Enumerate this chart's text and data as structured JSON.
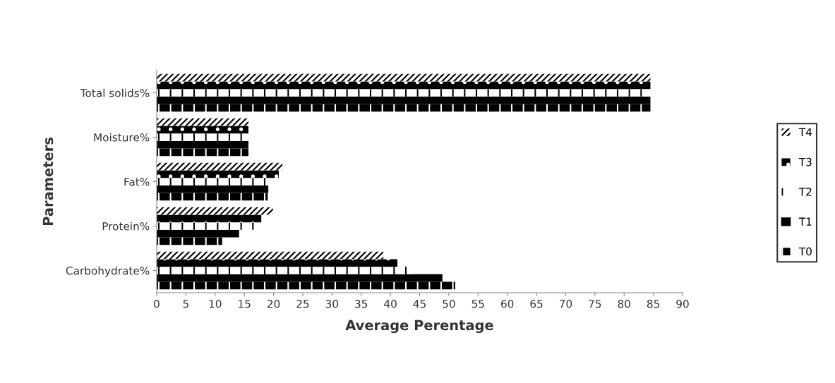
{
  "chart_data": {
    "type": "bar",
    "orientation": "horizontal",
    "xlabel": "Average Perentage",
    "ylabel": "Parameters",
    "categories": [
      "Total solids%",
      "Moisture%",
      "Fat%",
      "Protein%",
      "Carbohydrate%"
    ],
    "series": [
      {
        "name": "T0",
        "color": "#000000",
        "values": [
          84.5,
          15.7,
          19.0,
          11.2,
          51.1
        ]
      },
      {
        "name": "T1",
        "color": "#000000",
        "values": [
          84.5,
          15.7,
          19.1,
          14.1,
          48.9
        ]
      },
      {
        "name": "T2",
        "color": "#000000",
        "values": [
          84.5,
          15.7,
          19.3,
          16.7,
          43.6
        ]
      },
      {
        "name": "T3",
        "color": "#000000",
        "values": [
          84.5,
          15.7,
          20.9,
          17.9,
          41.2
        ]
      },
      {
        "name": "T4",
        "color": "#000000",
        "values": [
          84.5,
          15.7,
          21.5,
          19.9,
          38.8
        ]
      }
    ],
    "xlim": [
      0,
      90
    ],
    "xticks": [
      0,
      5,
      10,
      15,
      20,
      25,
      30,
      35,
      40,
      45,
      50,
      55,
      60,
      65,
      70,
      75,
      80,
      85,
      90
    ],
    "grid": false,
    "legend": "right"
  }
}
